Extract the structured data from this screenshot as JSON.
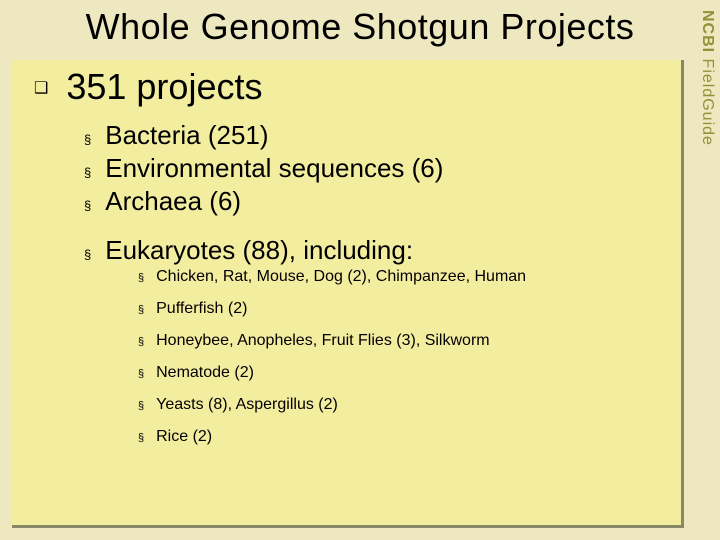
{
  "colors": {
    "slide_background": "#eee8c0",
    "box_background": "#f3eda0",
    "box_shadow": "#888866",
    "sidebar_text": "#94903a",
    "text": "#000000"
  },
  "fonts": {
    "title_family": "Gill Sans",
    "body_family": "Verdana",
    "title_size_pt": 36,
    "heading_size_pt": 36,
    "level2_size_pt": 26,
    "level3_size_pt": 16,
    "sidebar_size_pt": 16
  },
  "title": "Whole Genome Shotgun Projects",
  "sidebar": {
    "bold": "NCBI",
    "light": " FieldGuide"
  },
  "heading": "351 projects",
  "level2_items": [
    {
      "text": "Bacteria (251)"
    },
    {
      "text": "Environmental sequences (6)"
    },
    {
      "text": "Archaea (6)"
    },
    {
      "gap": true
    },
    {
      "text": "Eukaryotes (88), including:"
    }
  ],
  "level3_items": [
    {
      "text": "Chicken, Rat, Mouse, Dog (2), Chimpanzee, Human"
    },
    {
      "text": "Pufferfish (2)"
    },
    {
      "text": "Honeybee, Anopheles, Fruit Flies (3), Silkworm"
    },
    {
      "text": "Nematode (2)"
    },
    {
      "text": "Yeasts (8),  Aspergillus (2)"
    },
    {
      "text": "Rice (2)"
    }
  ],
  "bullets": {
    "level1": "❑",
    "level2": "§",
    "level3": "§"
  }
}
